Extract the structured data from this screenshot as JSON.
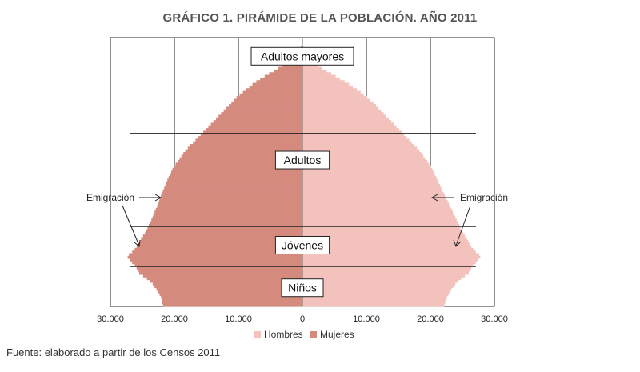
{
  "title": "GRÁFICO 1. PIRÁMIDE DE LA POBLACIÓN. AÑO 2011",
  "source": "Fuente: elaborado a partir de los Censos 2011",
  "colors": {
    "hombres": "#f4c2bd",
    "mujeres": "#d58a7e",
    "axis": "#222222"
  },
  "chart_data": {
    "type": "bar",
    "orientation": "horizontal-pyramid",
    "x_ticks": [
      "30.000",
      "20.000",
      "10.000",
      "0",
      "10.000",
      "20.000",
      "30.000"
    ],
    "xlim": [
      -30000,
      30000
    ],
    "grid": "vertical",
    "legend_position": "bottom",
    "series": [
      {
        "name": "Hombres",
        "side": "right",
        "key": "hombres"
      },
      {
        "name": "Mujeres",
        "side": "left",
        "key": "mujeres"
      }
    ],
    "ages_bottom_to_top": "0 to 100",
    "mujeres": [
      21800,
      21900,
      22000,
      22100,
      22300,
      22500,
      22800,
      23100,
      23400,
      23800,
      24300,
      24900,
      25500,
      25600,
      25900,
      26200,
      26600,
      27000,
      27300,
      27100,
      26600,
      26200,
      25900,
      25600,
      25400,
      25200,
      24900,
      24600,
      24400,
      24200,
      24000,
      23800,
      23600,
      23400,
      23300,
      23100,
      22900,
      22700,
      22500,
      22400,
      22300,
      22100,
      21900,
      21800,
      21600,
      21400,
      21300,
      21100,
      20900,
      20700,
      20500,
      20300,
      20100,
      19800,
      19500,
      19200,
      18900,
      18600,
      18300,
      17900,
      17500,
      17100,
      16700,
      16300,
      15900,
      15500,
      15100,
      14700,
      14300,
      13900,
      13500,
      13100,
      12700,
      12300,
      11900,
      11500,
      11100,
      10700,
      10300,
      9800,
      9300,
      8800,
      8300,
      7800,
      7200,
      6600,
      5900,
      5200,
      4500,
      3800,
      3100,
      2500,
      1900,
      1400,
      1000,
      700,
      450,
      260,
      130,
      60,
      20
    ],
    "hombres": [
      22200,
      22300,
      22400,
      22600,
      22800,
      23000,
      23300,
      23600,
      23900,
      24300,
      24800,
      25400,
      26000,
      26100,
      26400,
      26700,
      27100,
      27500,
      27800,
      27600,
      27100,
      26700,
      26400,
      26100,
      25900,
      25700,
      25400,
      25100,
      24900,
      24700,
      24500,
      24300,
      24100,
      23900,
      23700,
      23500,
      23300,
      23100,
      22900,
      22700,
      22500,
      22300,
      22100,
      21900,
      21700,
      21500,
      21300,
      21100,
      20900,
      20700,
      20500,
      20300,
      20100,
      19800,
      19500,
      19200,
      18900,
      18600,
      18300,
      17900,
      17500,
      17100,
      16700,
      16300,
      15900,
      15500,
      15100,
      14700,
      14300,
      13900,
      13500,
      13100,
      12700,
      12300,
      11900,
      11500,
      11100,
      10600,
      10100,
      9600,
      9100,
      8500,
      7900,
      7300,
      6600,
      5900,
      5200,
      4500,
      3800,
      3100,
      2500,
      1900,
      1400,
      1000,
      650,
      400,
      230,
      110,
      50,
      20,
      10
    ],
    "separator_ages": [
      15,
      30,
      65
    ],
    "band_labels": [
      {
        "text": "Niños",
        "age": 7
      },
      {
        "text": "Jóvenes",
        "age": 23
      },
      {
        "text": "Adultos",
        "age": 55
      },
      {
        "text": "Adultos mayores",
        "age": 94
      }
    ],
    "annotations": [
      {
        "text": "Emigración",
        "side": "left"
      },
      {
        "text": "Emigración",
        "side": "right"
      }
    ]
  }
}
